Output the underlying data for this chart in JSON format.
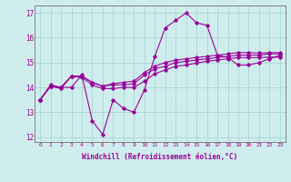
{
  "xlabel": "Windchill (Refroidissement éolien,°C)",
  "x_hours": [
    0,
    1,
    2,
    3,
    4,
    5,
    6,
    7,
    8,
    9,
    10,
    11,
    12,
    13,
    14,
    15,
    16,
    17,
    18,
    19,
    20,
    21,
    22,
    23
  ],
  "line1": [
    13.5,
    14.1,
    14.0,
    14.0,
    14.5,
    12.65,
    12.1,
    13.5,
    13.15,
    13.0,
    13.9,
    15.25,
    16.4,
    16.7,
    17.0,
    16.6,
    16.5,
    15.3,
    15.2,
    14.9,
    14.9,
    15.0,
    15.15,
    15.3
  ],
  "line2": [
    13.5,
    14.05,
    14.0,
    14.45,
    14.45,
    14.2,
    14.05,
    14.1,
    14.1,
    14.15,
    14.5,
    14.75,
    14.85,
    15.0,
    15.05,
    15.1,
    15.15,
    15.2,
    15.25,
    15.3,
    15.3,
    15.3,
    15.35,
    15.35
  ],
  "line3": [
    13.5,
    14.05,
    14.0,
    14.45,
    14.45,
    14.2,
    14.05,
    14.15,
    14.2,
    14.25,
    14.6,
    14.85,
    15.0,
    15.1,
    15.15,
    15.2,
    15.25,
    15.3,
    15.35,
    15.4,
    15.4,
    15.38,
    15.4,
    15.4
  ],
  "line4": [
    13.5,
    14.05,
    13.95,
    14.45,
    14.4,
    14.1,
    13.95,
    13.95,
    14.0,
    14.0,
    14.25,
    14.55,
    14.7,
    14.85,
    14.9,
    14.98,
    15.05,
    15.1,
    15.15,
    15.2,
    15.2,
    15.2,
    15.22,
    15.22
  ],
  "line_color": "#990099",
  "bg_color": "#d0eded",
  "grid_color": "#aad4d4",
  "axis_color": "#990099",
  "ylim": [
    11.8,
    17.3
  ],
  "xlim": [
    -0.5,
    23.5
  ],
  "yticks": [
    12,
    13,
    14,
    15,
    16,
    17
  ],
  "xticks": [
    0,
    1,
    2,
    3,
    4,
    5,
    6,
    7,
    8,
    9,
    10,
    11,
    12,
    13,
    14,
    15,
    16,
    17,
    18,
    19,
    20,
    21,
    22,
    23
  ]
}
